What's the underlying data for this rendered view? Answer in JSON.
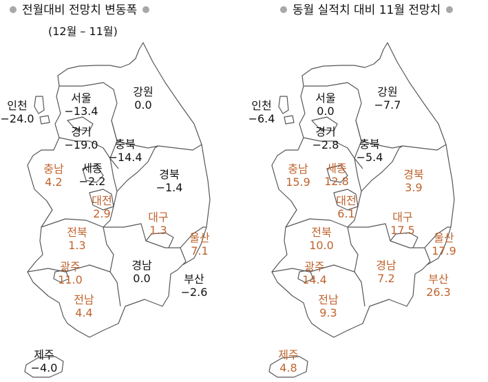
{
  "colors": {
    "increase": "#c0632c",
    "decrease_or_zero": "#111111",
    "bullet": "#a8a8a8",
    "border": "#555555"
  },
  "left_map": {
    "title": "전월대비 전망치 변동폭",
    "subtitle": "(12월 – 11월)",
    "regions": [
      {
        "name": "인천",
        "value": "−24.0",
        "trend": "neg"
      },
      {
        "name": "서울",
        "value": "−13.4",
        "trend": "neg"
      },
      {
        "name": "강원",
        "value": "0.0",
        "trend": "neg"
      },
      {
        "name": "경기",
        "value": "−19.0",
        "trend": "neg"
      },
      {
        "name": "충북",
        "value": "−14.4",
        "trend": "neg"
      },
      {
        "name": "충남",
        "value": "4.2",
        "trend": "pos"
      },
      {
        "name": "세종",
        "value": "−2.2",
        "trend": "neg"
      },
      {
        "name": "경북",
        "value": "−1.4",
        "trend": "neg"
      },
      {
        "name": "대전",
        "value": "2.9",
        "trend": "pos"
      },
      {
        "name": "대구",
        "value": "1.3",
        "trend": "pos"
      },
      {
        "name": "전북",
        "value": "1.3",
        "trend": "pos"
      },
      {
        "name": "울산",
        "value": "7.1",
        "trend": "pos"
      },
      {
        "name": "광주",
        "value": "11.0",
        "trend": "pos"
      },
      {
        "name": "경남",
        "value": "0.0",
        "trend": "neg"
      },
      {
        "name": "부산",
        "value": "−2.6",
        "trend": "neg"
      },
      {
        "name": "전남",
        "value": "4.4",
        "trend": "pos"
      },
      {
        "name": "제주",
        "value": "−4.0",
        "trend": "neg"
      }
    ]
  },
  "right_map": {
    "title": "동월 실적치 대비 11월 전망치",
    "regions": [
      {
        "name": "인천",
        "value": "−6.4",
        "trend": "neg"
      },
      {
        "name": "서울",
        "value": "0.0",
        "trend": "neg"
      },
      {
        "name": "강원",
        "value": "−7.7",
        "trend": "neg"
      },
      {
        "name": "경기",
        "value": "−2.8",
        "trend": "neg"
      },
      {
        "name": "충북",
        "value": "−5.4",
        "trend": "neg"
      },
      {
        "name": "충남",
        "value": "15.9",
        "trend": "pos"
      },
      {
        "name": "세종",
        "value": "12.8",
        "trend": "pos"
      },
      {
        "name": "경북",
        "value": "3.9",
        "trend": "pos"
      },
      {
        "name": "대전",
        "value": "6.1",
        "trend": "pos"
      },
      {
        "name": "대구",
        "value": "17.5",
        "trend": "pos"
      },
      {
        "name": "전북",
        "value": "10.0",
        "trend": "pos"
      },
      {
        "name": "울산",
        "value": "17.9",
        "trend": "pos"
      },
      {
        "name": "광주",
        "value": "14.4",
        "trend": "pos"
      },
      {
        "name": "경남",
        "value": "7.2",
        "trend": "pos"
      },
      {
        "name": "부산",
        "value": "26.3",
        "trend": "pos"
      },
      {
        "name": "전남",
        "value": "9.3",
        "trend": "pos"
      },
      {
        "name": "제주",
        "value": "4.8",
        "trend": "pos"
      }
    ]
  }
}
